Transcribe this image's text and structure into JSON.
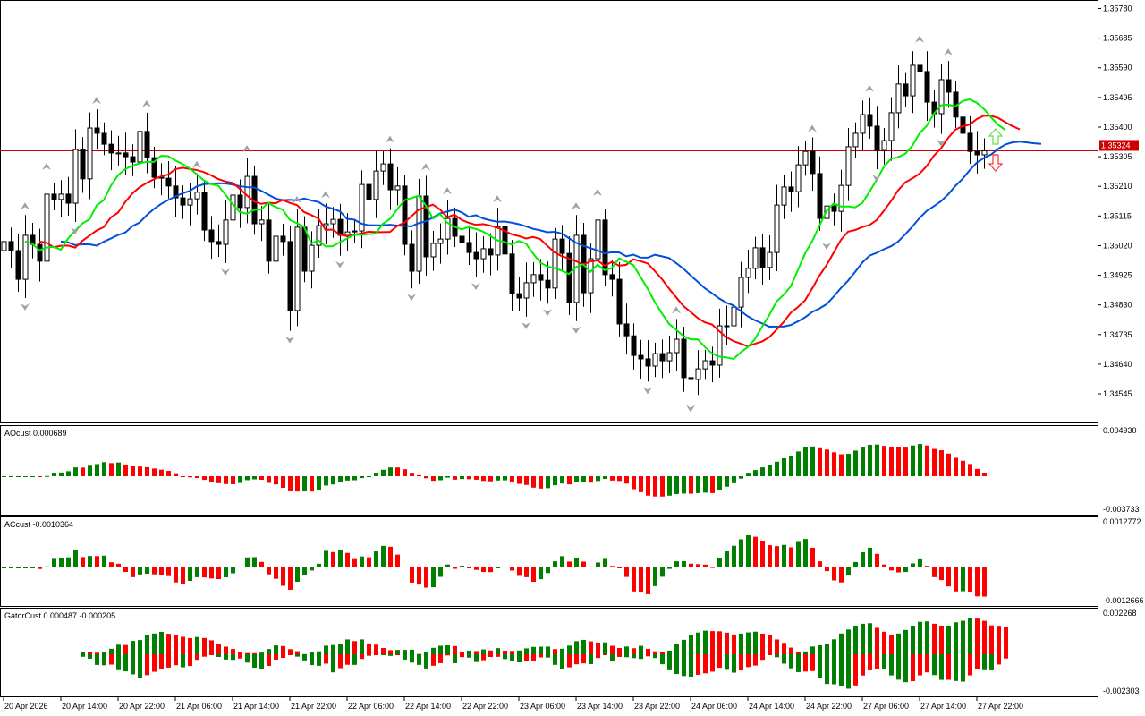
{
  "chart_data": {
    "type": "candlestick",
    "timeframe_bars": "hourly",
    "first_open": 1.35004,
    "close": [
      1.35033,
      1.35004,
      1.34912,
      1.35053,
      1.35024,
      1.3497,
      1.35185,
      1.35168,
      1.35185,
      1.35156,
      1.35328,
      1.35234,
      1.35397,
      1.3538,
      1.35345,
      1.35317,
      1.35317,
      1.35305,
      1.35288,
      1.35386,
      1.35302,
      1.35239,
      1.35236,
      1.35211,
      1.35173,
      1.3515,
      1.3517,
      1.35191,
      1.3507,
      1.35033,
      1.35024,
      1.35102,
      1.35182,
      1.35142,
      1.35242,
      1.3509,
      1.35102,
      1.3497,
      1.3505,
      1.35033,
      1.34812,
      1.35079,
      1.34938,
      1.35021,
      1.35084,
      1.3509,
      1.35104,
      1.35053,
      1.35064,
      1.35067,
      1.35216,
      1.35168,
      1.35259,
      1.35282,
      1.35199,
      1.35211,
      1.35024,
      1.34938,
      1.35179,
      1.34984,
      1.35027,
      1.35041,
      1.35107,
      1.3505,
      1.3503,
      1.34998,
      1.34978,
      1.3501,
      1.3499,
      1.35081,
      1.34993,
      1.34866,
      1.34852,
      1.34901,
      1.34927,
      1.34909,
      1.34884,
      1.35041,
      1.34995,
      1.34838,
      1.35053,
      1.34869,
      1.34978,
      1.35102,
      1.34927,
      1.34912,
      1.34769,
      1.34731,
      1.34668,
      1.34657,
      1.34634,
      1.34674,
      1.34651,
      1.34677,
      1.3472,
      1.34597,
      1.34591,
      1.34625,
      1.34651,
      1.34637,
      1.34763,
      1.34763,
      1.34823,
      1.34918,
      1.34947,
      1.35013,
      1.3495,
      1.34998,
      1.3515,
      1.35208,
      1.35193,
      1.35279,
      1.35322,
      1.35251,
      1.35107,
      1.35147,
      1.3513,
      1.35213,
      1.35337,
      1.3538,
      1.3544,
      1.35403,
      1.35325,
      1.35357,
      1.35446,
      1.35538,
      1.355,
      1.35598,
      1.35578,
      1.3548,
      1.35443,
      1.35552,
      1.35512,
      1.35432,
      1.3538,
      1.35322,
      1.35311,
      1.35324
    ],
    "ylim": [
      1.3445,
      1.358
    ],
    "y_ticks": [
      "1.35780",
      "1.35685",
      "1.35590",
      "1.35495",
      "1.35400",
      "1.35305",
      "1.35210",
      "1.35115",
      "1.35020",
      "1.34925",
      "1.34830",
      "1.34735",
      "1.34640",
      "1.34545"
    ],
    "current_price": "1.35324",
    "x_ticks": [
      {
        "label": "20 Apr 2026",
        "bar": 0
      },
      {
        "label": "20 Apr 14:00",
        "bar": 8
      },
      {
        "label": "20 Apr 22:00",
        "bar": 16
      },
      {
        "label": "21 Apr 06:00",
        "bar": 24
      },
      {
        "label": "21 Apr 14:00",
        "bar": 32
      },
      {
        "label": "21 Apr 22:00",
        "bar": 40
      },
      {
        "label": "22 Apr 06:00",
        "bar": 48
      },
      {
        "label": "22 Apr 14:00",
        "bar": 56
      },
      {
        "label": "22 Apr 22:00",
        "bar": 64
      },
      {
        "label": "23 Apr 06:00",
        "bar": 72
      },
      {
        "label": "23 Apr 14:00",
        "bar": 80
      },
      {
        "label": "23 Apr 22:00",
        "bar": 88
      },
      {
        "label": "24 Apr 06:00",
        "bar": 96
      },
      {
        "label": "24 Apr 14:00",
        "bar": 104
      },
      {
        "label": "24 Apr 22:00",
        "bar": 112
      },
      {
        "label": "27 Apr 06:00",
        "bar": 120
      },
      {
        "label": "27 Apr 14:00",
        "bar": 128
      },
      {
        "label": "27 Apr 22:00",
        "bar": 136
      }
    ],
    "alligator": {
      "jaw_color": "#0050dc",
      "teeth_color": "#ff0000",
      "lips_color": "#00ee00"
    },
    "colors": {
      "up_bar": "#008000",
      "down_bar": "#ff0000",
      "price_line": "#cc0000",
      "fractal": "#a0a0a0"
    },
    "signals": {
      "buy_arrow_color": "#66dd44",
      "sell_arrow_color": "#ff3333"
    }
  },
  "panels": {
    "ao": {
      "label": "AOcust 0.000689",
      "max": "0.004930",
      "min": "-0.003733"
    },
    "ac": {
      "label": "ACcust -0.0010364",
      "max": "0.0012772",
      "min": "-0.0012666"
    },
    "gator": {
      "label": "GatorCust 0.000487 -0.000205",
      "max": "0.002268",
      "min": "-0.002303"
    }
  }
}
